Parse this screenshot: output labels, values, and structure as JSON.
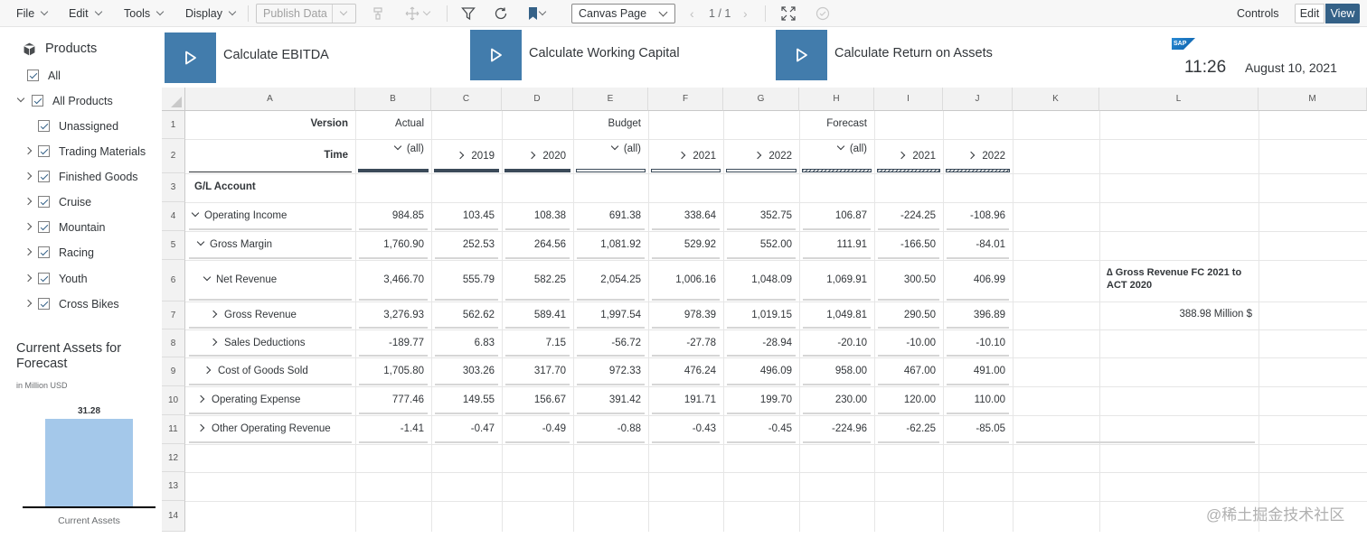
{
  "toolbar": {
    "file": "File",
    "edit": "Edit",
    "tools": "Tools",
    "display": "Display",
    "publish_data": "Publish Data",
    "canvas_page": "Canvas Page",
    "pager": "1 / 1",
    "controls": "Controls",
    "edit_mode": "Edit",
    "view_mode": "View"
  },
  "products_filter": {
    "title": "Products",
    "items": [
      {
        "label": "All",
        "checked": true
      },
      {
        "label": "All Products",
        "checked": true
      },
      {
        "label": "Unassigned",
        "checked": true
      },
      {
        "label": "Trading Materials",
        "checked": true
      },
      {
        "label": "Finished Goods",
        "checked": true
      },
      {
        "label": "Cruise",
        "checked": true
      },
      {
        "label": "Mountain",
        "checked": true
      },
      {
        "label": "Racing",
        "checked": true
      },
      {
        "label": "Youth",
        "checked": true
      },
      {
        "label": "Cross Bikes",
        "checked": true
      }
    ]
  },
  "current_assets": {
    "title": "Current Assets for Forecast",
    "subtitle": "in Million USD",
    "value_label": "31.28",
    "category": "Current Assets"
  },
  "chart_data": {
    "type": "bar",
    "title": "Current Assets for Forecast",
    "subtitle": "in Million USD",
    "categories": [
      "Current Assets"
    ],
    "values": [
      31.28
    ],
    "color": "#a4c8ea"
  },
  "calc_buttons": [
    {
      "label": "Calculate EBITDA"
    },
    {
      "label": "Calculate Working Capital"
    },
    {
      "label": "Calculate Return on Assets"
    }
  ],
  "header_right": {
    "logo": "SAP",
    "time": "11:26",
    "date": "August 10, 2021"
  },
  "colors": {
    "accent": "#427cac",
    "view_button": "#346187",
    "bar": "#a4c8ea"
  },
  "grid": {
    "columns": [
      "A",
      "B",
      "C",
      "D",
      "E",
      "F",
      "G",
      "H",
      "I",
      "J",
      "K",
      "L",
      "M"
    ],
    "rows": [
      "1",
      "2",
      "3",
      "4",
      "5",
      "6",
      "7",
      "8",
      "9",
      "10",
      "11",
      "12",
      "13",
      "14"
    ],
    "version_label": "Version",
    "time_label": "Time",
    "gl_account": "G/L Account",
    "versions": [
      "Actual",
      "Budget",
      "Forecast"
    ],
    "time_members": [
      "(all)",
      "2019",
      "2020",
      "(all)",
      "2021",
      "2022",
      "(all)",
      "2021",
      "2022"
    ],
    "data_rows": [
      {
        "label": "Operating Income",
        "values": [
          "984.85",
          "103.45",
          "108.38",
          "691.38",
          "338.64",
          "352.75",
          "106.87",
          "-224.25",
          "-108.96"
        ]
      },
      {
        "label": "Gross Margin",
        "values": [
          "1,760.90",
          "252.53",
          "264.56",
          "1,081.92",
          "529.92",
          "552.00",
          "111.91",
          "-166.50",
          "-84.01"
        ]
      },
      {
        "label": "Net Revenue",
        "values": [
          "3,466.70",
          "555.79",
          "582.25",
          "2,054.25",
          "1,006.16",
          "1,048.09",
          "1,069.91",
          "300.50",
          "406.99"
        ]
      },
      {
        "label": "Gross Revenue",
        "values": [
          "3,276.93",
          "562.62",
          "589.41",
          "1,997.54",
          "978.39",
          "1,019.15",
          "1,049.81",
          "290.50",
          "396.89"
        ]
      },
      {
        "label": "Sales Deductions",
        "values": [
          "-189.77",
          "6.83",
          "7.15",
          "-56.72",
          "-27.78",
          "-28.94",
          "-20.10",
          "-10.00",
          "-10.10"
        ]
      },
      {
        "label": "Cost of Goods Sold",
        "values": [
          "1,705.80",
          "303.26",
          "317.70",
          "972.33",
          "476.24",
          "496.09",
          "958.00",
          "467.00",
          "491.00"
        ]
      },
      {
        "label": "Operating Expense",
        "values": [
          "777.46",
          "149.55",
          "156.67",
          "391.42",
          "191.71",
          "199.70",
          "230.00",
          "120.00",
          "110.00"
        ]
      },
      {
        "label": "Other Operating Revenue",
        "values": [
          "-1.41",
          "-0.47",
          "-0.49",
          "-0.88",
          "-0.43",
          "-0.45",
          "-224.96",
          "-62.25",
          "-85.05"
        ]
      }
    ],
    "kpi_title": "∆ Gross Revenue FC 2021 to ACT 2020",
    "kpi_value": "388.98 Million $"
  },
  "watermark": "@稀土掘金技术社区"
}
